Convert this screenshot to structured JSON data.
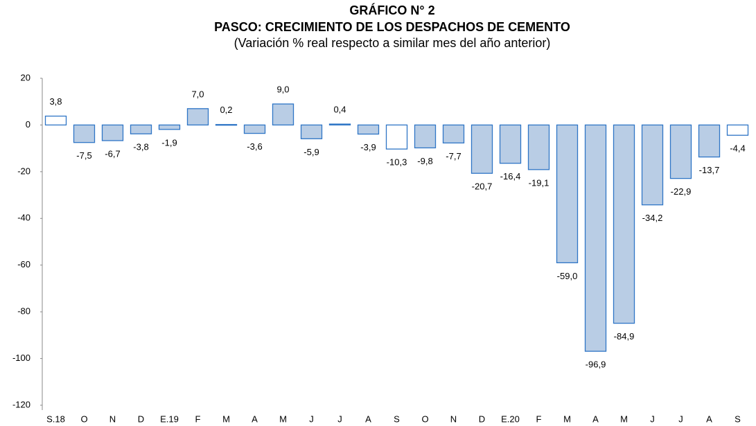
{
  "chart_data": {
    "type": "bar",
    "title": "GRÁFICO N° 2",
    "subtitle": "PASCO: CRECIMIENTO DE LOS DESPACHOS DE CEMENTO",
    "subtitle2": "(Variación % real respecto a similar mes del año anterior)",
    "categories": [
      "S.18",
      "O",
      "N",
      "D",
      "E.19",
      "F",
      "M",
      "A",
      "M",
      "J",
      "J",
      "A",
      "S",
      "O",
      "N",
      "D",
      "E.20",
      "F",
      "M",
      "A",
      "M",
      "J",
      "J",
      "A",
      "S"
    ],
    "values": [
      3.8,
      -7.5,
      -6.7,
      -3.8,
      -1.9,
      7.0,
      0.2,
      -3.6,
      9.0,
      -5.9,
      0.4,
      -3.9,
      -10.3,
      -9.8,
      -7.7,
      -20.7,
      -16.4,
      -19.1,
      -59.0,
      -96.9,
      -84.9,
      -34.2,
      -22.9,
      -13.7,
      -4.4
    ],
    "value_labels": [
      "3,8",
      "-7,5",
      "-6,7",
      "-3,8",
      "-1,9",
      "7,0",
      "0,2",
      "-3,6",
      "9,0",
      "-5,9",
      "0,4",
      "-3,9",
      "-10,3",
      "-9,8",
      "-7,7",
      "-20,7",
      "-16,4",
      "-19,1",
      "-59,0",
      "-96,9",
      "-84,9",
      "-34,2",
      "-22,9",
      "-13,7",
      "-4,4"
    ],
    "colors": [
      "#ffffff",
      "#b9cde5",
      "#b9cde5",
      "#b9cde5",
      "#b9cde5",
      "#b9cde5",
      "#b9cde5",
      "#b9cde5",
      "#b9cde5",
      "#b9cde5",
      "#b9cde5",
      "#b9cde5",
      "#ffffff",
      "#b9cde5",
      "#b9cde5",
      "#b9cde5",
      "#b9cde5",
      "#b9cde5",
      "#b9cde5",
      "#b9cde5",
      "#b9cde5",
      "#b9cde5",
      "#b9cde5",
      "#b9cde5",
      "#ffffff"
    ],
    "border_color": "#2e75c6",
    "ylim": [
      -120,
      20
    ],
    "yticks": [
      20,
      0,
      -20,
      -40,
      -60,
      -80,
      -100,
      -120
    ],
    "grid": false
  }
}
